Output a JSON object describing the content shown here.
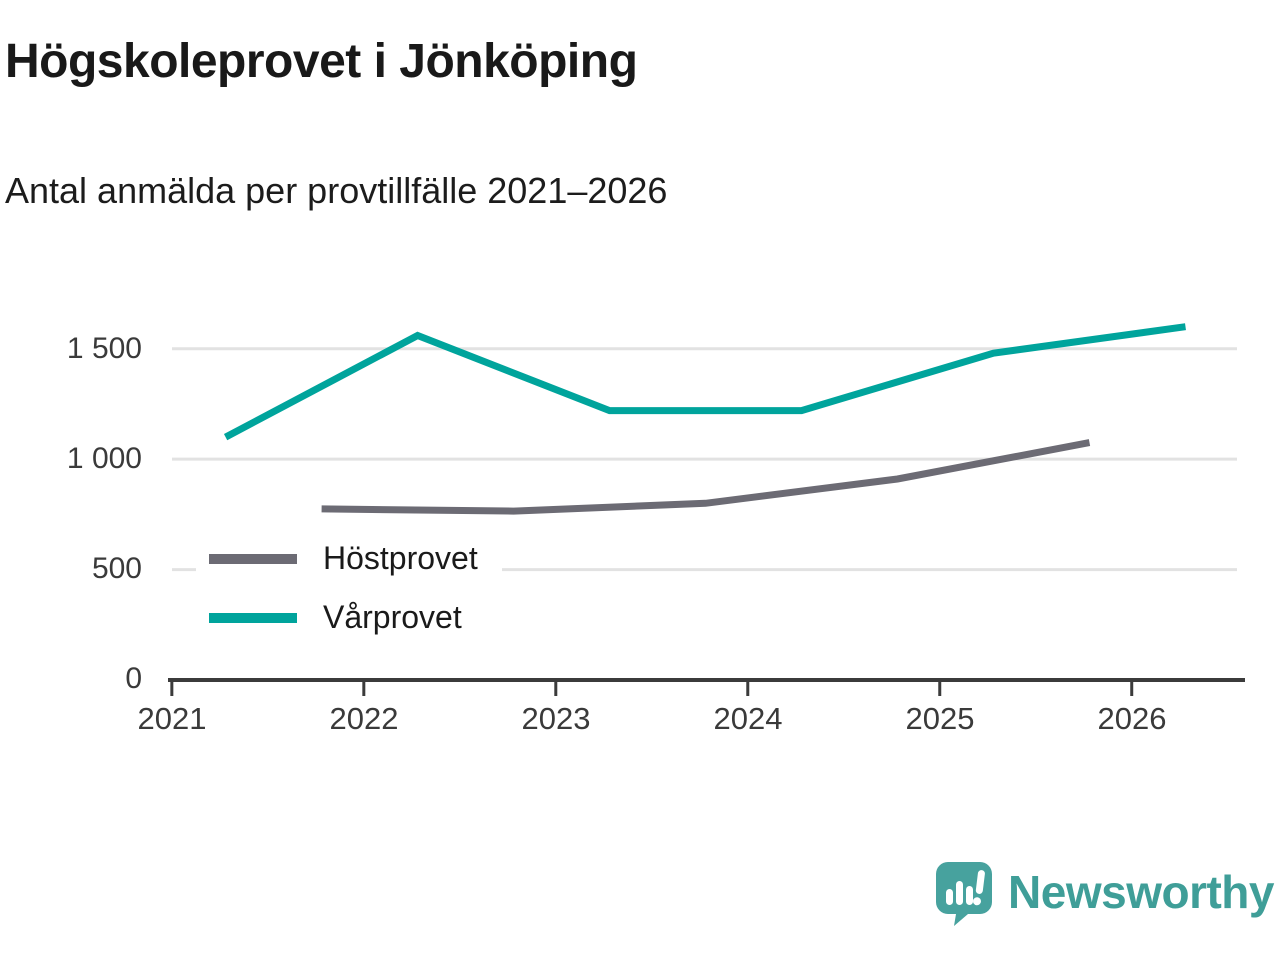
{
  "chart_data": {
    "type": "line",
    "title": "Högskoleprovet i Jönköping",
    "subtitle": "Antal anmälda per provtillfälle 2021–2026",
    "xlabel": "",
    "ylabel": "",
    "xlim": [
      2020.98,
      2026.59
    ],
    "ylim": [
      0,
      1680
    ],
    "grid": "horizontal",
    "legend_position": "inside-left",
    "x_tick_values": [
      2021,
      2022,
      2023,
      2024,
      2025,
      2026
    ],
    "x_tick_labels": [
      "2021",
      "2022",
      "2023",
      "2024",
      "2025",
      "2026"
    ],
    "y_ticks": [
      {
        "value": 0,
        "label": "0"
      },
      {
        "value": 500,
        "label": "500"
      },
      {
        "value": 1000,
        "label": "1 000"
      },
      {
        "value": 1500,
        "label": "1 500"
      }
    ],
    "series": [
      {
        "name": "Höstprovet",
        "color": "#6c6b74",
        "x": [
          2021.78,
          2022.78,
          2023.78,
          2024.78,
          2025.78
        ],
        "values": [
          775,
          765,
          800,
          910,
          1075
        ]
      },
      {
        "name": "Vårprovet",
        "color": "#00a49c",
        "x": [
          2021.28,
          2022.28,
          2023.28,
          2024.28,
          2025.28,
          2026.28
        ],
        "values": [
          1100,
          1560,
          1220,
          1220,
          1480,
          1600
        ]
      }
    ]
  },
  "colors": {
    "axis": "#3b3b3b",
    "gridline": "#e2e2e2",
    "host_line": "#6c6b74",
    "var_line": "#00a49c",
    "logo_teal": "#47a29e",
    "logo_text_teal": "#3f9e98"
  },
  "footer": {
    "logo_text": "Newsworthy"
  }
}
